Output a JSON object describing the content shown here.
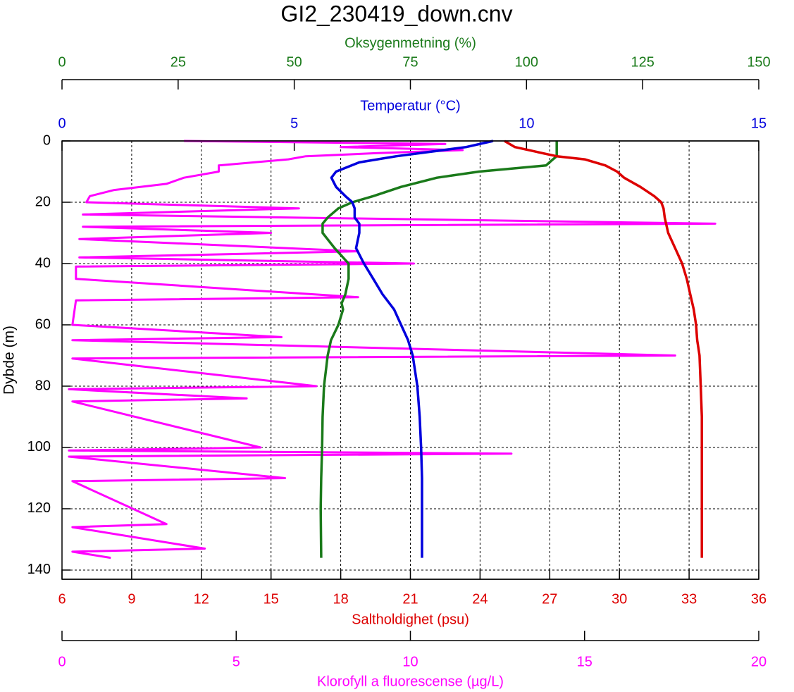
{
  "chart_data": {
    "type": "line",
    "title": "GI2_230419_down.cnv",
    "ylabel": "Dybde (m)",
    "ylim": [
      0,
      143
    ],
    "y_inverted": true,
    "yticks": [
      0,
      20,
      40,
      60,
      80,
      100,
      120,
      140
    ],
    "grid": true,
    "x_axes": [
      {
        "label": "Oksygenmetning (%)",
        "color": "#1a7a1a",
        "xlim": [
          0,
          150
        ],
        "xticks": [
          0,
          25,
          50,
          75,
          100,
          125,
          150
        ],
        "depth": [
          0,
          3,
          5,
          6,
          8,
          10,
          12,
          15,
          18,
          20,
          22,
          25,
          27,
          30,
          35,
          40,
          45,
          50,
          53,
          55,
          60,
          65,
          70,
          80,
          90,
          100,
          110,
          120,
          136
        ],
        "values": [
          106.5,
          106.5,
          106.5,
          105.7,
          104.2,
          89.8,
          80.7,
          73,
          67,
          62.5,
          59.5,
          57.2,
          56.1,
          56.1,
          58.7,
          61.7,
          61.7,
          61,
          60.2,
          60.5,
          59.5,
          57.9,
          57.2,
          56.4,
          56.1,
          56,
          55.8,
          55.7,
          55.8
        ]
      },
      {
        "label": "Temperatur (°C)",
        "color": "#0000dd",
        "xlim": [
          0,
          15
        ],
        "xticks": [
          0,
          5,
          10,
          15
        ],
        "depth": [
          0,
          2,
          5,
          7,
          10,
          12,
          15,
          18,
          20,
          22,
          25,
          27,
          30,
          35,
          40,
          45,
          50,
          55,
          60,
          65,
          70,
          80,
          90,
          100,
          110,
          136
        ],
        "values": [
          9.28,
          8.7,
          7.2,
          6.4,
          5.9,
          5.8,
          5.9,
          6.1,
          6.25,
          6.3,
          6.3,
          6.4,
          6.4,
          6.33,
          6.5,
          6.7,
          6.9,
          7.15,
          7.3,
          7.45,
          7.55,
          7.65,
          7.7,
          7.73,
          7.75,
          7.75
        ]
      },
      {
        "label": "Saltholdighet (psu)",
        "color": "#dd0000",
        "xlim": [
          6,
          36
        ],
        "xticks": [
          6,
          9,
          12,
          15,
          18,
          21,
          24,
          27,
          30,
          33,
          36
        ],
        "depth": [
          0,
          2,
          4,
          5,
          6,
          8,
          10,
          12,
          15,
          18,
          20,
          22,
          25,
          30,
          35,
          40,
          45,
          50,
          55,
          60,
          65,
          70,
          80,
          90,
          136
        ],
        "values": [
          25.05,
          25.5,
          26.7,
          27.3,
          28.5,
          29.4,
          29.9,
          30.2,
          30.9,
          31.5,
          31.8,
          31.9,
          31.95,
          32.1,
          32.4,
          32.7,
          32.9,
          33.05,
          33.2,
          33.3,
          33.35,
          33.45,
          33.5,
          33.55,
          33.55
        ]
      },
      {
        "label": "Klorofyll a fluorescense (µg/L)",
        "color": "#ff00ff",
        "xlim": [
          0,
          20
        ],
        "xticks": [
          0,
          5,
          10,
          15,
          20
        ],
        "depth": [
          0,
          1,
          2,
          3,
          4,
          5,
          6,
          8,
          10,
          12,
          14,
          16,
          18,
          20,
          22,
          24,
          27,
          28,
          30,
          32,
          36,
          38,
          40,
          41,
          45,
          51,
          52,
          60,
          64,
          65,
          70,
          71,
          80,
          81,
          84,
          85,
          100,
          101,
          102,
          103,
          110,
          111,
          125,
          126,
          133,
          134,
          136
        ],
        "values": [
          3.5,
          11,
          8,
          11.5,
          9,
          7,
          6.5,
          4.5,
          4.5,
          3.5,
          3,
          1.5,
          0.8,
          0.7,
          6.8,
          0.6,
          18.75,
          0.6,
          6,
          0.5,
          8.5,
          0.5,
          10.1,
          0.4,
          0.4,
          8.5,
          0.4,
          0.3,
          6.3,
          0.3,
          17.6,
          0.3,
          7.3,
          0.2,
          5.3,
          0.3,
          5.7,
          0.2,
          12.9,
          0.2,
          6.4,
          0.3,
          3,
          0.3,
          4.1,
          0.3,
          1.4
        ]
      }
    ]
  }
}
